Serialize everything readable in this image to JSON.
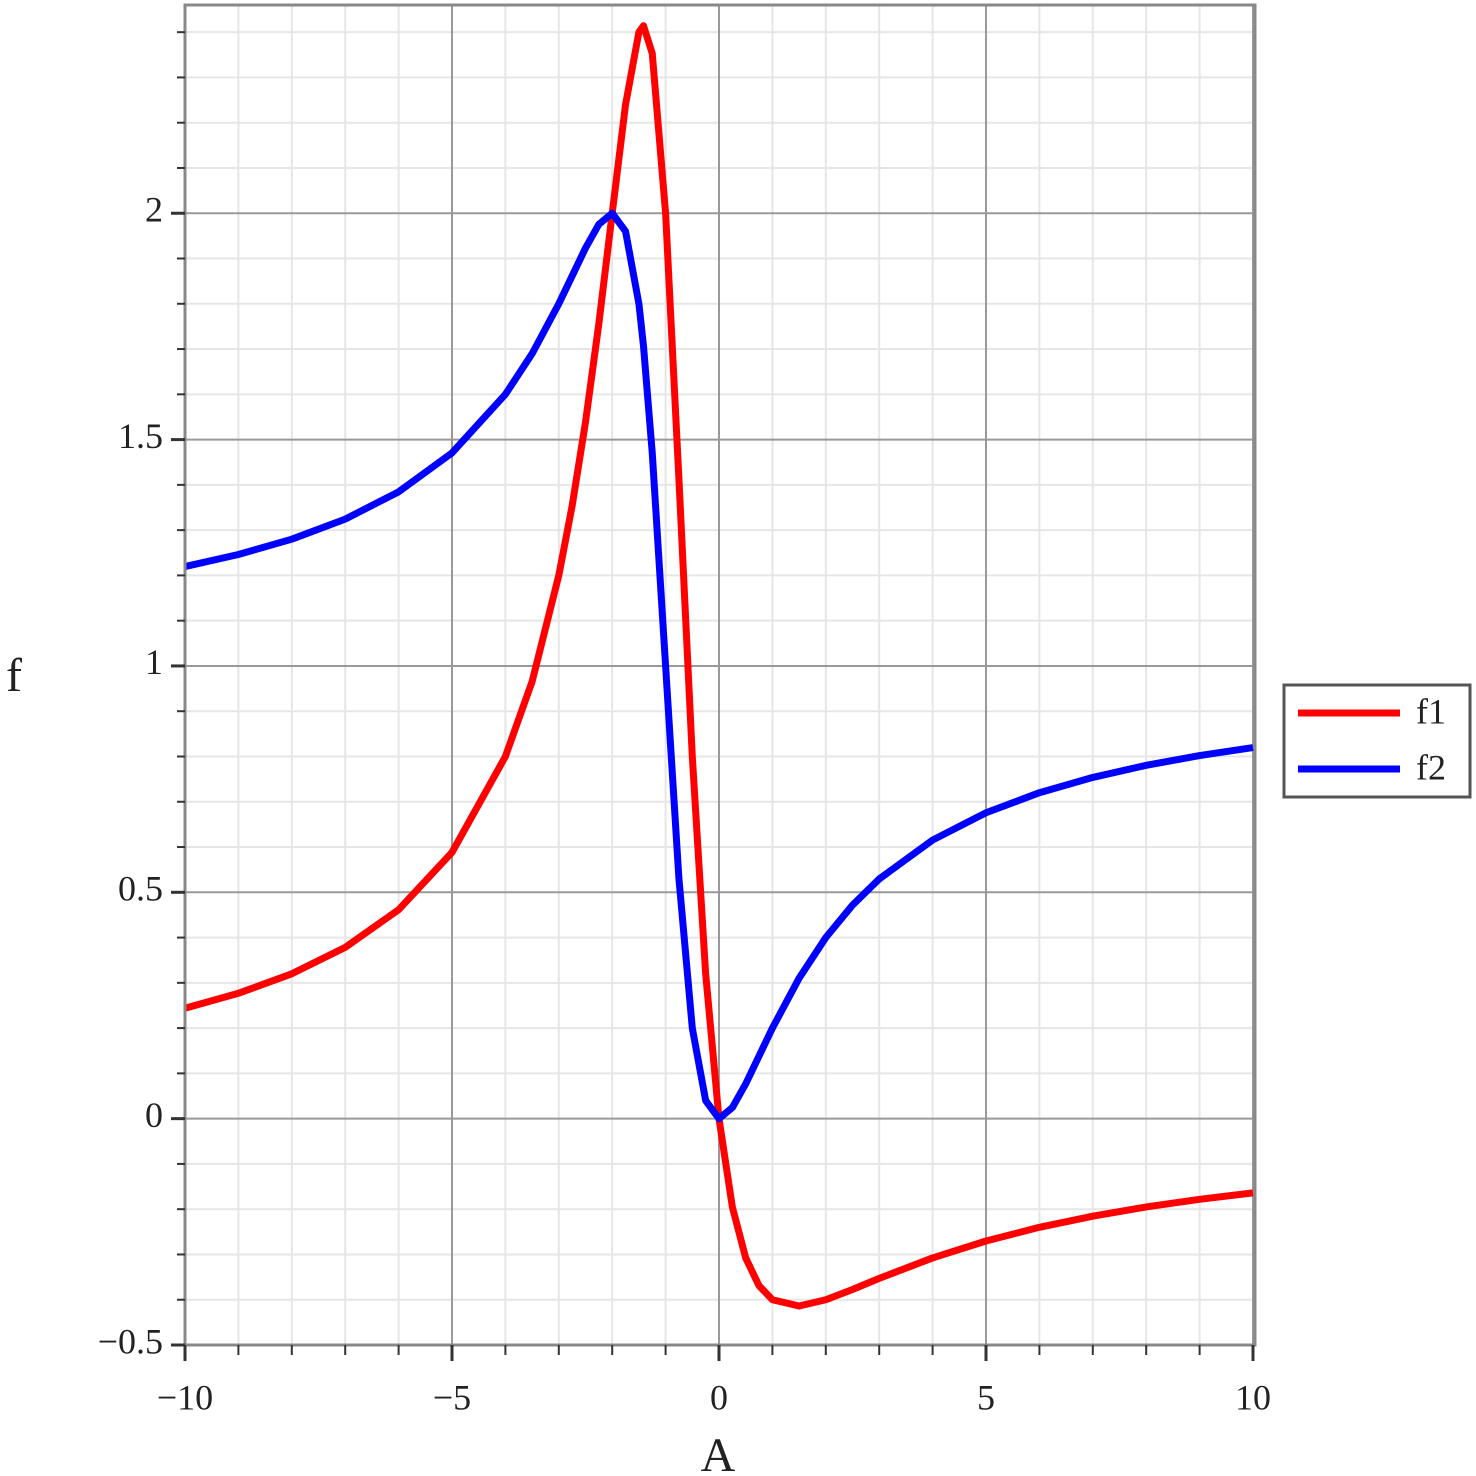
{
  "chart_data": {
    "type": "line",
    "x_label": "A",
    "y_label": "f",
    "x": [
      -10,
      -9,
      -8,
      -7,
      -6,
      -5,
      -4,
      -3.5,
      -3,
      -2.75,
      -2.5,
      -2.25,
      -2,
      -1.75,
      -1.5,
      -1.4142,
      -1.25,
      -1,
      -0.75,
      -0.5,
      -0.25,
      0,
      0.25,
      0.5,
      0.75,
      1,
      1.5,
      2,
      2.5,
      3,
      4,
      5,
      6,
      7,
      8,
      9,
      10
    ],
    "series": [
      {
        "name": "f1",
        "color": "#ff0000",
        "values": [
          0.2439,
          0.2769,
          0.32,
          0.3784,
          0.4615,
          0.5882,
          0.8,
          0.9655,
          1.2,
          1.3538,
          1.5385,
          1.7561,
          2,
          2.24,
          2.4,
          2.4142,
          2.3529,
          2,
          1.4118,
          0.8,
          0.32,
          0,
          -0.1951,
          -0.3077,
          -0.3692,
          -0.4,
          -0.4138,
          -0.4,
          -0.3774,
          -0.3529,
          -0.3077,
          -0.2703,
          -0.24,
          -0.2154,
          -0.1951,
          -0.1782,
          -0.1639
        ]
      },
      {
        "name": "f2",
        "color": "#0000ff",
        "values": [
          1.2195,
          1.2462,
          1.28,
          1.3243,
          1.3846,
          1.4706,
          1.6,
          1.6897,
          1.8,
          1.8615,
          1.9231,
          1.9756,
          2,
          1.96,
          1.8,
          1.7071,
          1.4706,
          1,
          0.5294,
          0.2,
          0.04,
          0,
          0.0244,
          0.0769,
          0.1385,
          0.2,
          0.3103,
          0.4,
          0.4717,
          0.5294,
          0.6154,
          0.6757,
          0.72,
          0.7538,
          0.7805,
          0.802,
          0.8197
        ]
      }
    ],
    "xlim": [
      -10,
      10
    ],
    "ylim": [
      -0.5,
      2.46
    ],
    "xticks": [
      {
        "value": -10,
        "label": "−10"
      },
      {
        "value": -5,
        "label": "−5"
      },
      0,
      5,
      10
    ],
    "yticks": [
      {
        "value": -0.5,
        "label": "−0.5"
      },
      0,
      0.5,
      1,
      1.5,
      2
    ],
    "grid": true,
    "legend": "right"
  }
}
